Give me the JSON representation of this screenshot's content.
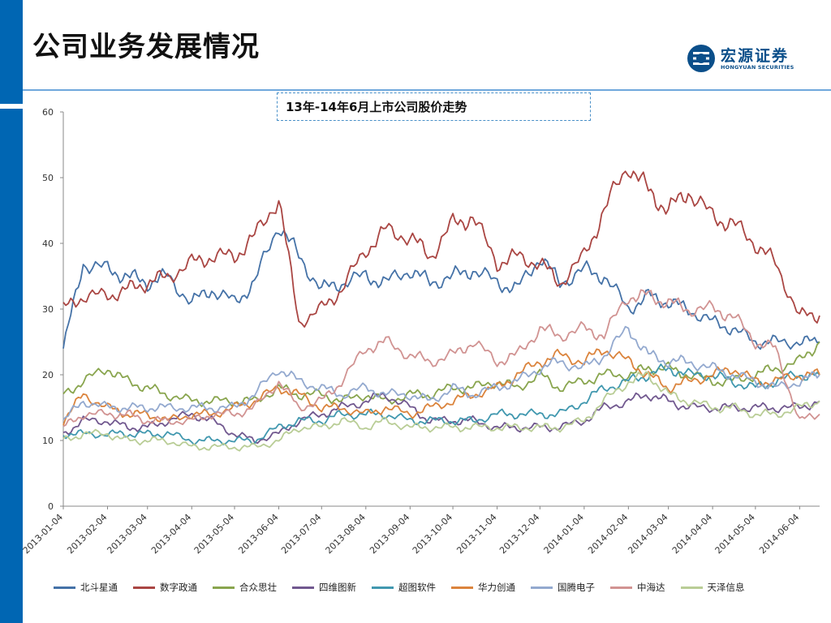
{
  "slide": {
    "title": "公司业务发展情况",
    "logo_cn": "宏源证券",
    "logo_en": "HONGYUAN SECURITIES"
  },
  "chart_data": {
    "type": "line",
    "title": "13年-14年6月上市公司股价走势",
    "xlabel": "",
    "ylabel": "",
    "ylim": [
      0,
      60
    ],
    "yticks": [
      0,
      10,
      20,
      30,
      40,
      50,
      60
    ],
    "x_tick_labels": [
      "2013-01-04",
      "2013-02-04",
      "2013-03-04",
      "2013-04-04",
      "2013-05-04",
      "2013-06-04",
      "2013-07-04",
      "2013-08-04",
      "2013-09-04",
      "2013-10-04",
      "2013-11-04",
      "2013-12-04",
      "2014-01-04",
      "2014-02-04",
      "2014-03-04",
      "2014-04-04",
      "2014-05-04",
      "2014-06-04"
    ],
    "x_positions": [
      "2013-01-04",
      "2013-01-18",
      "2013-02-04",
      "2013-02-18",
      "2013-03-04",
      "2013-03-18",
      "2013-04-04",
      "2013-04-18",
      "2013-05-04",
      "2013-05-18",
      "2013-06-04",
      "2013-06-18",
      "2013-07-04",
      "2013-07-18",
      "2013-08-04",
      "2013-08-18",
      "2013-09-04",
      "2013-09-18",
      "2013-10-04",
      "2013-10-18",
      "2013-11-04",
      "2013-11-18",
      "2013-12-04",
      "2013-12-18",
      "2014-01-04",
      "2014-01-18",
      "2014-02-04",
      "2014-02-18",
      "2014-03-04",
      "2014-03-18",
      "2014-04-04",
      "2014-04-18",
      "2014-05-04",
      "2014-05-18",
      "2014-06-04",
      "2014-06-18"
    ],
    "legend_position": "bottom",
    "grid": false,
    "series": [
      {
        "name": "北斗星通",
        "color": "#4572a7",
        "values": [
          24,
          37,
          36,
          35,
          34,
          35,
          31,
          33,
          31,
          34,
          43,
          38,
          33,
          34,
          35,
          34,
          36,
          34,
          35,
          36,
          34,
          33,
          38,
          34,
          36,
          35,
          30,
          32,
          31,
          30,
          28,
          27,
          25,
          25,
          25,
          25
        ]
      },
      {
        "name": "数字政通",
        "color": "#aa4643",
        "values": [
          30,
          32,
          32,
          33,
          34,
          35,
          37,
          38,
          38,
          41,
          47,
          28,
          30,
          33,
          39,
          42,
          41,
          38,
          43,
          44,
          37,
          38,
          37,
          34,
          38,
          45,
          52,
          48,
          45,
          48,
          44,
          43,
          40,
          37,
          29,
          29
        ]
      },
      {
        "name": "合众思壮",
        "color": "#89a54e",
        "values": [
          17,
          19,
          21,
          19,
          18,
          17,
          16,
          16,
          16,
          16,
          18,
          17,
          17,
          16,
          17,
          16,
          17,
          17,
          18,
          18,
          19,
          18,
          20,
          18,
          19,
          20,
          20,
          21,
          21,
          20,
          19,
          19,
          20,
          21,
          22,
          25
        ]
      },
      {
        "name": "四维图新",
        "color": "#71588f",
        "values": [
          11,
          13,
          13,
          12,
          12,
          13,
          14,
          13,
          11,
          10,
          11,
          13,
          14,
          15,
          16,
          17,
          15,
          13,
          13,
          13,
          12,
          12,
          12,
          12,
          13,
          15,
          16,
          17,
          16,
          15,
          15,
          15,
          15,
          15,
          15,
          16
        ]
      },
      {
        "name": "超图软件",
        "color": "#4198af",
        "values": [
          11,
          11,
          11,
          11,
          11,
          11,
          10,
          10,
          10,
          10,
          12,
          13,
          13,
          14,
          14,
          14,
          13,
          13,
          13,
          13,
          14,
          14,
          14,
          14,
          16,
          18,
          19,
          20,
          21,
          20,
          20,
          19,
          18,
          19,
          20,
          20
        ]
      },
      {
        "name": "华力创通",
        "color": "#db843d",
        "values": [
          13,
          17,
          15,
          14,
          14,
          13,
          14,
          14,
          15,
          16,
          18,
          17,
          15,
          15,
          14,
          15,
          14,
          15,
          16,
          17,
          18,
          20,
          22,
          23,
          22,
          24,
          22,
          20,
          18,
          19,
          20,
          21,
          19,
          19,
          20,
          20
        ]
      },
      {
        "name": "国腾电子",
        "color": "#93a9cf",
        "values": [
          13,
          16,
          15,
          15,
          15,
          15,
          15,
          15,
          15,
          17,
          21,
          19,
          18,
          17,
          18,
          17,
          17,
          16,
          18,
          17,
          18,
          19,
          21,
          22,
          21,
          23,
          27,
          23,
          22,
          22,
          21,
          20,
          19,
          18,
          19,
          20
        ]
      },
      {
        "name": "中海达",
        "color": "#d19392",
        "values": [
          12,
          14,
          14,
          14,
          13,
          13,
          13,
          14,
          14,
          15,
          19,
          15,
          16,
          19,
          24,
          25,
          23,
          22,
          23,
          25,
          22,
          23,
          27,
          26,
          27,
          26,
          32,
          32,
          31,
          30,
          30,
          29,
          25,
          24,
          13,
          14
        ]
      },
      {
        "name": "天泽信息",
        "color": "#b9cd96",
        "values": [
          10,
          11,
          11,
          10,
          10,
          10,
          9,
          9,
          9,
          9,
          10,
          12,
          12,
          13,
          12,
          13,
          12,
          12,
          12,
          12,
          12,
          12,
          12,
          12,
          13,
          16,
          19,
          20,
          17,
          16,
          15,
          15,
          14,
          14,
          15,
          16
        ]
      }
    ]
  }
}
